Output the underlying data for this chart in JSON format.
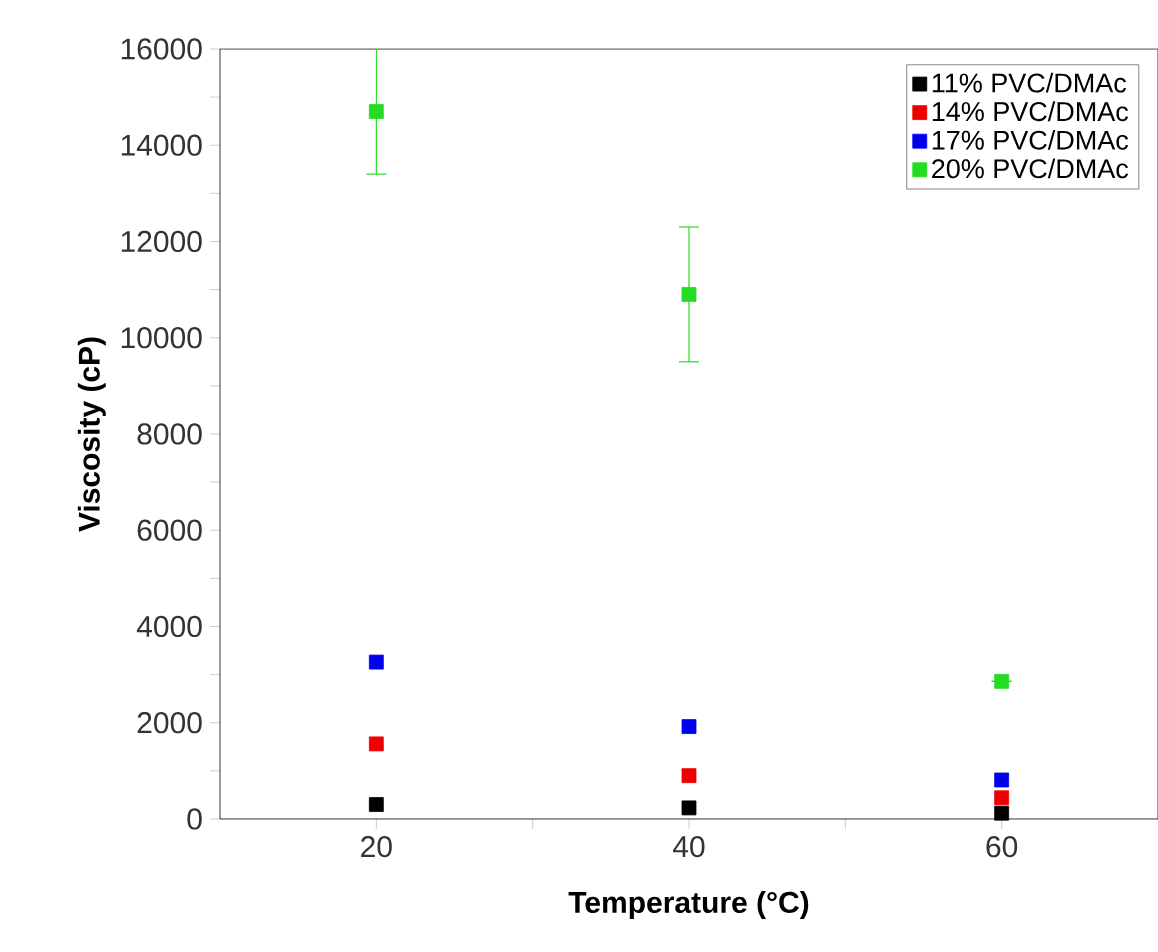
{
  "chart_data": {
    "type": "scatter",
    "xlabel": "Temperature (°C)",
    "ylabel": "Viscosity (cP)",
    "x": [
      20,
      40,
      60
    ],
    "series": [
      {
        "name": "11% PVC/DMAc",
        "color": "#000000",
        "values": [
          300,
          230,
          120
        ]
      },
      {
        "name": "14% PVC/DMAc",
        "color": "#ee0000",
        "values": [
          1560,
          900,
          440
        ]
      },
      {
        "name": "17% PVC/DMAc",
        "color": "#0000ee",
        "values": [
          3260,
          1920,
          810
        ]
      },
      {
        "name": "20% PVC/DMAc",
        "color": "#22dd22",
        "values": [
          14700,
          10900,
          2860
        ],
        "errors": [
          1300,
          1400,
          null
        ]
      }
    ],
    "xlim": [
      10,
      70
    ],
    "ylim": [
      0,
      16000
    ],
    "xticks": [
      20,
      {
        "value": 30,
        "label": null
      },
      40,
      {
        "value": 50,
        "label": null
      },
      60
    ],
    "yticks": [
      0,
      {
        "value": 1000,
        "label": null
      },
      2000,
      {
        "value": 3000,
        "label": null
      },
      4000,
      {
        "value": 5000,
        "label": null
      },
      6000,
      {
        "value": 7000,
        "label": null
      },
      8000,
      {
        "value": 9000,
        "label": null
      },
      10000,
      {
        "value": 11000,
        "label": null
      },
      12000,
      {
        "value": 13000,
        "label": null
      },
      14000,
      {
        "value": 15000,
        "label": null
      },
      16000
    ],
    "legend": "top right",
    "marker": "square",
    "grid": false
  }
}
